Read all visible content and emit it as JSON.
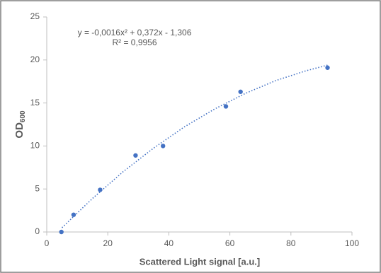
{
  "chart_data": {
    "type": "scatter",
    "xlabel": "Scattered Light signal   [a.u.]",
    "ylabel": "OD",
    "ylabel_subscript": "600",
    "equation": "y = -0,0016x² + 0,372x - 1,306",
    "r_squared": "R² = 0,9956",
    "series": [
      {
        "name": "data",
        "color": "#4472c4",
        "x": [
          4.8,
          8.8,
          17.5,
          29.1,
          38.1,
          58.7,
          63.5,
          92
        ],
        "values": [
          0,
          2,
          4.9,
          8.9,
          10,
          14.6,
          16.3,
          19.1
        ]
      },
      {
        "name": "trendline",
        "color": "#4472c4",
        "style": "dotted",
        "x": [
          5,
          15,
          25,
          35,
          45,
          55,
          65,
          75,
          85,
          92
        ],
        "values": [
          0.5,
          3.9,
          7,
          9.75,
          12.2,
          14.3,
          16.1,
          17.6,
          18.75,
          19.4
        ]
      }
    ],
    "xlim": [
      0,
      100
    ],
    "xticks": [
      0,
      20,
      40,
      60,
      80,
      100
    ],
    "ylim": [
      0,
      25
    ],
    "yticks": [
      0,
      5,
      10,
      15,
      20,
      25
    ],
    "grid": false
  }
}
